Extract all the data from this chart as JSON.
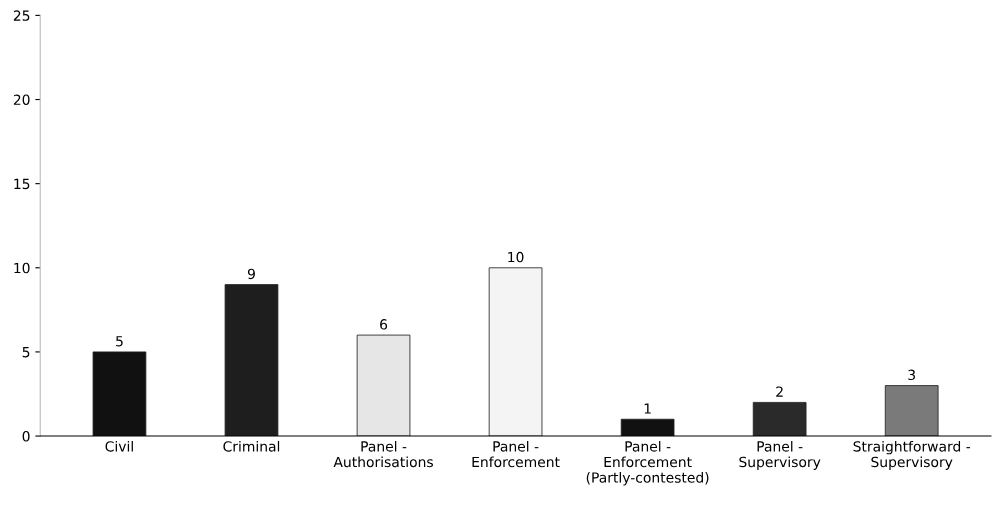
{
  "chart_data": {
    "type": "bar",
    "categories": [
      "Civil",
      "Criminal",
      "Panel -\nAuthorisations",
      "Panel -\nEnforcement",
      "Panel -\nEnforcement\n(Partly-contested)",
      "Panel -\nSupervisory",
      "Straightforward -\nSupervisory"
    ],
    "values": [
      5,
      9,
      6,
      10,
      1,
      2,
      3
    ],
    "colors": [
      "#111111",
      "#1e1e1e",
      "#e6e6e6",
      "#f4f4f4",
      "#111111",
      "#2a2a2a",
      "#7a7a7a"
    ],
    "ylim": [
      0,
      25
    ],
    "yticks": [
      0,
      5,
      10,
      15,
      20,
      25
    ],
    "data_labels": true,
    "grid": false
  }
}
